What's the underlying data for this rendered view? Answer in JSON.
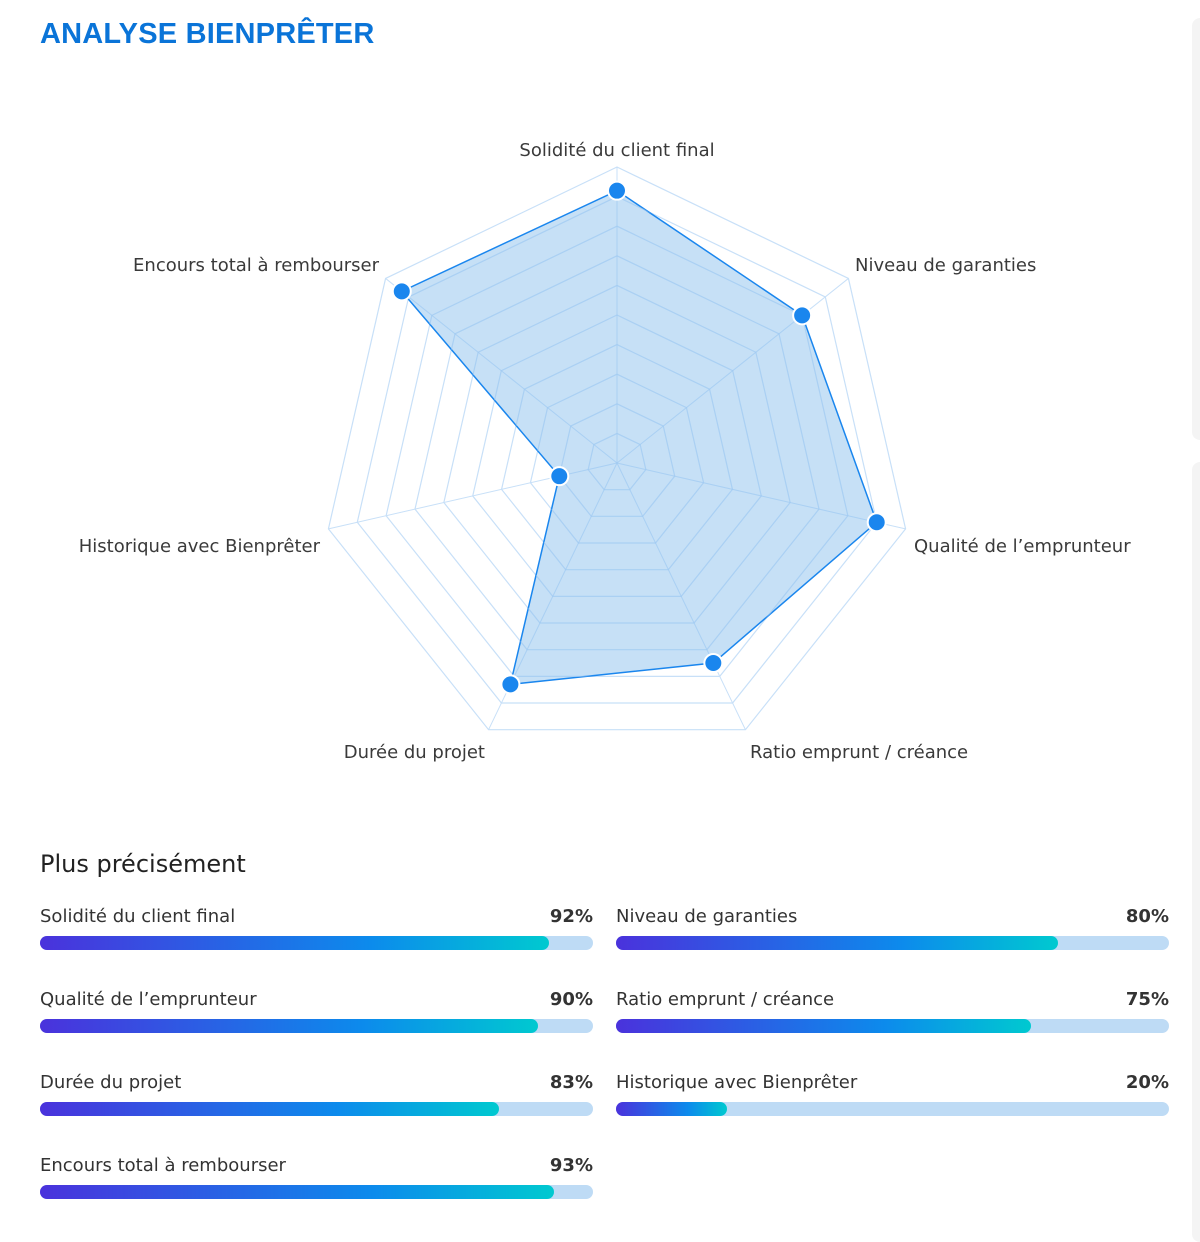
{
  "header": {
    "title": "ANALYSE BIENPRÊTER"
  },
  "chart_data": {
    "type": "radar",
    "categories": [
      "Solidité du client final",
      "Niveau de garanties",
      "Qualité de l’emprunteur",
      "Ratio emprunt / créance",
      "Durée du projet",
      "Historique avec Bienprêter",
      "Encours total à rembourser"
    ],
    "values": [
      92,
      80,
      90,
      75,
      83,
      20,
      93
    ],
    "range": [
      0,
      100
    ],
    "rings": 10,
    "grid": true,
    "colors": {
      "line": "#1a86ee",
      "fill": "#bcdaf4",
      "grid": "#c8e0f8"
    }
  },
  "details": {
    "title": "Plus précisément",
    "items": [
      {
        "label": "Solidité du client final",
        "pct": "92%",
        "value": 92
      },
      {
        "label": "Niveau de garanties",
        "pct": "80%",
        "value": 80
      },
      {
        "label": "Qualité de l’emprunteur",
        "pct": "90%",
        "value": 90
      },
      {
        "label": "Ratio emprunt / créance",
        "pct": "75%",
        "value": 75
      },
      {
        "label": "Durée du projet",
        "pct": "83%",
        "value": 83
      },
      {
        "label": "Historique avec Bienprêter",
        "pct": "20%",
        "value": 20
      },
      {
        "label": "Encours total à rembourser",
        "pct": "93%",
        "value": 93
      }
    ]
  }
}
